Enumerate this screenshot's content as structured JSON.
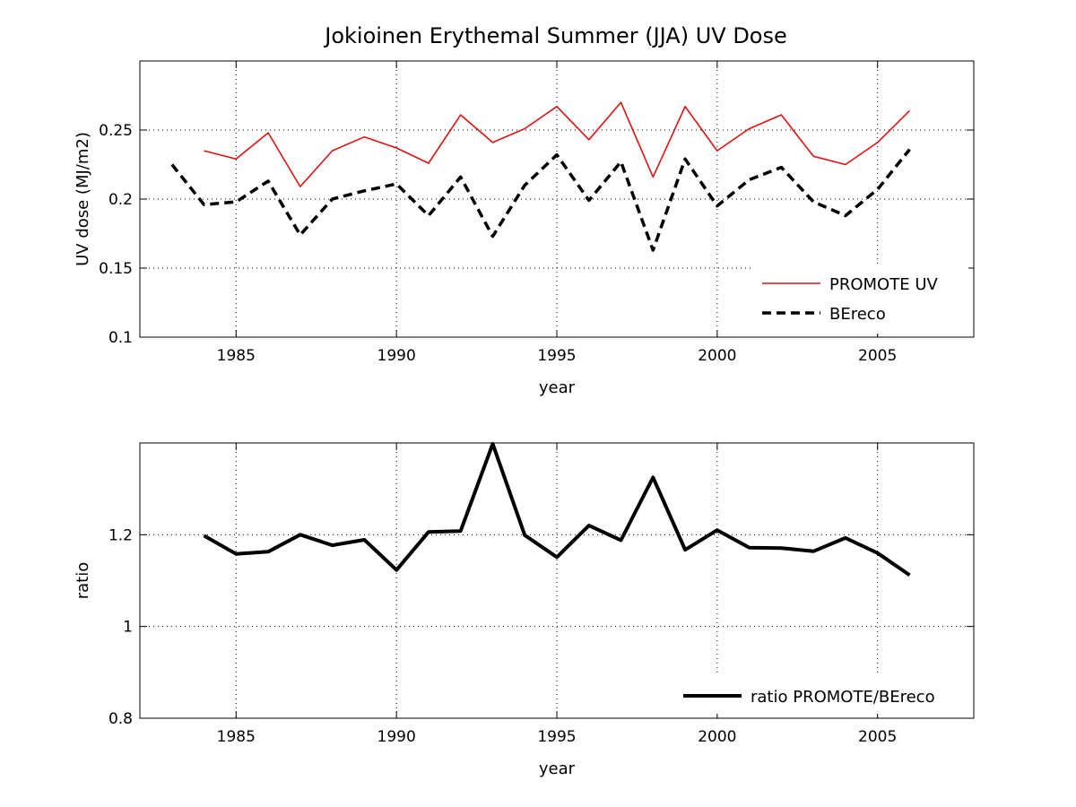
{
  "figure": {
    "title": "Jokioinen Erythemal Summer (JJA) UV Dose"
  },
  "chart_data": [
    {
      "type": "line",
      "title": "Jokioinen Erythemal Summer (JJA) UV Dose",
      "xlabel": "year",
      "ylabel": "UV dose (MJ/m2)",
      "xlim": [
        1982,
        2008
      ],
      "ylim": [
        0.1,
        0.3
      ],
      "xticks": [
        1985,
        1990,
        1995,
        2000,
        2005
      ],
      "yticks": [
        0.1,
        0.15,
        0.2,
        0.25
      ],
      "ytick_labels": [
        "0.1",
        "0.15",
        "0.2",
        "0.25"
      ],
      "grid": true,
      "legend_position": "bottom-right",
      "series": [
        {
          "name": "PROMOTE UV",
          "color": "#e01010",
          "style": "solid",
          "x": [
            1984,
            1985,
            1986,
            1987,
            1988,
            1989,
            1990,
            1991,
            1992,
            1993,
            1994,
            1995,
            1996,
            1997,
            1998,
            1999,
            2000,
            2001,
            2002,
            2003,
            2004,
            2005,
            2006
          ],
          "values": [
            0.235,
            0.229,
            0.248,
            0.209,
            0.235,
            0.245,
            0.237,
            0.226,
            0.261,
            0.241,
            0.251,
            0.267,
            0.243,
            0.27,
            0.216,
            0.267,
            0.235,
            0.251,
            0.261,
            0.231,
            0.225,
            0.241,
            0.264
          ]
        },
        {
          "name": "BEreco",
          "color": "#000000",
          "style": "dashed",
          "x": [
            1983,
            1984,
            1985,
            1986,
            1987,
            1988,
            1989,
            1990,
            1991,
            1992,
            1993,
            1994,
            1995,
            1996,
            1997,
            1998,
            1999,
            2000,
            2001,
            2002,
            2003,
            2004,
            2005,
            2006
          ],
          "values": [
            0.225,
            0.196,
            0.198,
            0.213,
            0.174,
            0.2,
            0.206,
            0.211,
            0.188,
            0.216,
            0.173,
            0.21,
            0.232,
            0.199,
            0.227,
            0.163,
            0.229,
            0.195,
            0.214,
            0.223,
            0.198,
            0.188,
            0.207,
            0.236
          ]
        }
      ]
    },
    {
      "type": "line",
      "title": "",
      "xlabel": "year",
      "ylabel": "ratio",
      "xlim": [
        1982,
        2008
      ],
      "ylim": [
        0.8,
        1.4
      ],
      "xticks": [
        1985,
        1990,
        1995,
        2000,
        2005
      ],
      "yticks": [
        0.8,
        1.0,
        1.2
      ],
      "ytick_labels": [
        "0.8",
        "1",
        "1.2"
      ],
      "grid": true,
      "legend_position": "bottom-right",
      "series": [
        {
          "name": "ratio PROMOTE/BEreco",
          "color": "#000000",
          "style": "solid-thick",
          "x": [
            1984,
            1985,
            1986,
            1987,
            1988,
            1989,
            1990,
            1991,
            1992,
            1993,
            1994,
            1995,
            1996,
            1997,
            1998,
            1999,
            2000,
            2001,
            2002,
            2003,
            2004,
            2005,
            2006
          ],
          "values": [
            1.198,
            1.158,
            1.163,
            1.2,
            1.177,
            1.189,
            1.123,
            1.206,
            1.208,
            1.398,
            1.199,
            1.151,
            1.22,
            1.188,
            1.325,
            1.167,
            1.21,
            1.172,
            1.171,
            1.164,
            1.193,
            1.16,
            1.112
          ]
        }
      ]
    }
  ]
}
